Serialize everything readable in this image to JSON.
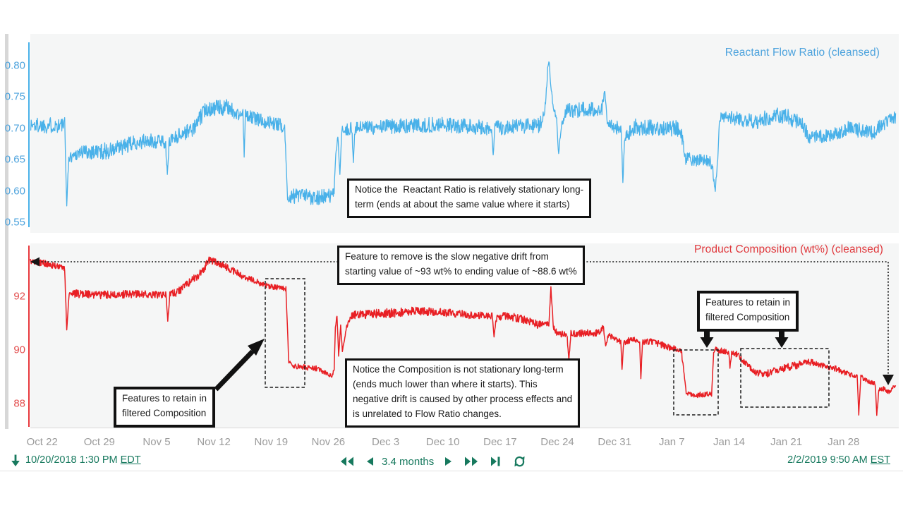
{
  "top_chart": {
    "title": "Reactant Flow Ratio (cleansed)",
    "y_tick_labels": [
      "0.80",
      "0.75",
      "0.70",
      "0.65",
      "0.60",
      "0.55"
    ],
    "series_color": "#49b1e9",
    "axis_color": "#4da3dd"
  },
  "bottom_chart": {
    "title": "Product Composition (wt%) (cleansed)",
    "y_tick_labels": [
      "92",
      "90",
      "88"
    ],
    "series_color": "#e81f24",
    "axis_color": "#e34f4f"
  },
  "x_axis": {
    "labels": [
      "Oct 22",
      "Oct 29",
      "Nov 5",
      "Nov 12",
      "Nov 19",
      "Nov 26",
      "Dec 3",
      "Dec 10",
      "Dec 17",
      "Dec 24",
      "Dec 31",
      "Jan 7",
      "Jan 14",
      "Jan 21",
      "Jan 28"
    ],
    "color": "#9b9b9b"
  },
  "annotations": {
    "reactant_note": "Notice the  Reactant Ratio is relatively stationary long-\nterm (ends at about the same value where it starts)",
    "drift_note": "Feature to remove is the slow negative drift from\nstarting value of ~93 wt% to ending value of ~88.6 wt%",
    "composition_note": "Notice the Composition is not stationary long-term\n(ends much lower than where it starts). This\nnegative drift is caused by other process effects and\nis unrelated to Flow Ratio changes.",
    "retain_note_left": "Features to retain in\nfiltered Composition",
    "retain_note_right": "Features to retain in\nfiltered Composition"
  },
  "toolbar": {
    "start_timestamp": "10/20/2018 1:30 PM",
    "start_tz": "EDT",
    "duration": "3.4 months",
    "end_timestamp": "2/2/2019 9:50 AM",
    "end_tz": "EST",
    "accent_color": "#17795e"
  },
  "chart_data": [
    {
      "type": "line",
      "title": "Reactant Flow Ratio (cleansed)",
      "x_start": "10/20/2018 1:30 PM EDT",
      "x_end": "2/2/2019 9:50 AM EST",
      "x_span_days": 105.8,
      "ylim": [
        0.533,
        0.851
      ],
      "y_ticks": [
        0.8,
        0.75,
        0.7,
        0.65,
        0.6,
        0.55
      ],
      "x_tick_labels": [
        "Oct 22",
        "Oct 29",
        "Nov 5",
        "Nov 12",
        "Nov 19",
        "Nov 26",
        "Dec 3",
        "Dec 10",
        "Dec 17",
        "Dec 24",
        "Dec 31",
        "Jan 7",
        "Jan 14",
        "Jan 21",
        "Jan 28"
      ],
      "x_tick_day_offsets": [
        1.44,
        8.44,
        15.44,
        22.44,
        29.44,
        36.44,
        43.44,
        50.44,
        57.44,
        64.44,
        71.44,
        78.44,
        85.44,
        92.44,
        99.44
      ],
      "grid": false,
      "legend": "none",
      "noise_model": "uniform band around control points, [day, value, half_band]",
      "control_points": [
        [
          0,
          0.705,
          0.013
        ],
        [
          4.2,
          0.705,
          0.013
        ],
        [
          4.45,
          0.578,
          0.002
        ],
        [
          4.7,
          0.652,
          0.008
        ],
        [
          6,
          0.662,
          0.012
        ],
        [
          10,
          0.664,
          0.014
        ],
        [
          13,
          0.678,
          0.012
        ],
        [
          16.5,
          0.68,
          0.012
        ],
        [
          16.75,
          0.625,
          0.003
        ],
        [
          17,
          0.682,
          0.012
        ],
        [
          20,
          0.7,
          0.012
        ],
        [
          21.5,
          0.732,
          0.013
        ],
        [
          24.5,
          0.733,
          0.013
        ],
        [
          25,
          0.722,
          0.01
        ],
        [
          26.0,
          0.722,
          0.01
        ],
        [
          26.15,
          0.655,
          0.003
        ],
        [
          26.3,
          0.72,
          0.011
        ],
        [
          28.5,
          0.712,
          0.011
        ],
        [
          31.1,
          0.703,
          0.011
        ],
        [
          31.45,
          0.588,
          0.004
        ],
        [
          32,
          0.592,
          0.013
        ],
        [
          36.8,
          0.59,
          0.013
        ],
        [
          37.15,
          0.6,
          0.006
        ],
        [
          37.35,
          0.655,
          0.004
        ],
        [
          37.6,
          0.688,
          0.005
        ],
        [
          37.85,
          0.628,
          0.004
        ],
        [
          38.1,
          0.695,
          0.008
        ],
        [
          39.3,
          0.7,
          0.011
        ],
        [
          39.5,
          0.648,
          0.003
        ],
        [
          39.7,
          0.7,
          0.011
        ],
        [
          44,
          0.703,
          0.012
        ],
        [
          50,
          0.706,
          0.012
        ],
        [
          56.4,
          0.7,
          0.012
        ],
        [
          56.6,
          0.655,
          0.003
        ],
        [
          56.8,
          0.7,
          0.012
        ],
        [
          62.3,
          0.705,
          0.012
        ],
        [
          62.9,
          0.725,
          0.008
        ],
        [
          63.25,
          0.792,
          0.006
        ],
        [
          63.45,
          0.808,
          0.004
        ],
        [
          63.7,
          0.756,
          0.006
        ],
        [
          64.05,
          0.733,
          0.008
        ],
        [
          64.35,
          0.718,
          0.006
        ],
        [
          64.6,
          0.658,
          0.004
        ],
        [
          64.95,
          0.705,
          0.008
        ],
        [
          65.6,
          0.728,
          0.012
        ],
        [
          69.9,
          0.732,
          0.012
        ],
        [
          70.25,
          0.758,
          0.005
        ],
        [
          70.55,
          0.712,
          0.008
        ],
        [
          71.3,
          0.702,
          0.012
        ],
        [
          72.25,
          0.7,
          0.01
        ],
        [
          72.45,
          0.617,
          0.004
        ],
        [
          72.7,
          0.688,
          0.01
        ],
        [
          74,
          0.702,
          0.013
        ],
        [
          79.5,
          0.7,
          0.013
        ],
        [
          80.1,
          0.652,
          0.01
        ],
        [
          83.3,
          0.645,
          0.011
        ],
        [
          83.75,
          0.602,
          0.004
        ],
        [
          84.05,
          0.65,
          0.004
        ],
        [
          84.3,
          0.718,
          0.008
        ],
        [
          85.5,
          0.716,
          0.012
        ],
        [
          89,
          0.712,
          0.013
        ],
        [
          91.5,
          0.722,
          0.014
        ],
        [
          94.3,
          0.71,
          0.012
        ],
        [
          95.2,
          0.686,
          0.011
        ],
        [
          97.6,
          0.688,
          0.011
        ],
        [
          100,
          0.7,
          0.012
        ],
        [
          103,
          0.693,
          0.012
        ],
        [
          104.8,
          0.712,
          0.011
        ],
        [
          105.8,
          0.718,
          0.01
        ]
      ]
    },
    {
      "type": "line",
      "title": "Product Composition (wt%) (cleansed)",
      "x_start": "10/20/2018 1:30 PM EDT",
      "x_end": "2/2/2019 9:50 AM EST",
      "x_span_days": 105.8,
      "ylim": [
        87.07,
        93.98
      ],
      "y_ticks": [
        92,
        90,
        88
      ],
      "x_tick_labels": [
        "Oct 22",
        "Oct 29",
        "Nov 5",
        "Nov 12",
        "Nov 19",
        "Nov 26",
        "Dec 3",
        "Dec 10",
        "Dec 17",
        "Dec 24",
        "Dec 31",
        "Jan 7",
        "Jan 14",
        "Jan 21",
        "Jan 28"
      ],
      "x_tick_day_offsets": [
        1.44,
        8.44,
        15.44,
        22.44,
        29.44,
        36.44,
        43.44,
        50.44,
        57.44,
        64.44,
        71.44,
        78.44,
        85.44,
        92.44,
        99.44
      ],
      "grid": false,
      "legend": "none",
      "start_value_wt_pct": 93,
      "end_value_wt_pct": 88.6,
      "noise_model": "uniform band around control points, [day, value, half_band]",
      "control_points": [
        [
          0,
          93.3,
          0.1
        ],
        [
          1.5,
          93.25,
          0.12
        ],
        [
          4.2,
          93.05,
          0.1
        ],
        [
          4.45,
          90.75,
          0.05
        ],
        [
          4.75,
          92.15,
          0.08
        ],
        [
          5.5,
          92.1,
          0.15
        ],
        [
          9,
          92.05,
          0.15
        ],
        [
          13,
          92.1,
          0.15
        ],
        [
          16.6,
          92.05,
          0.13
        ],
        [
          16.8,
          91.05,
          0.05
        ],
        [
          17.05,
          92.1,
          0.13
        ],
        [
          18,
          92.15,
          0.15
        ],
        [
          21,
          92.9,
          0.15
        ],
        [
          21.8,
          93.35,
          0.15
        ],
        [
          22.6,
          93.3,
          0.15
        ],
        [
          24,
          93.1,
          0.14
        ],
        [
          26,
          92.75,
          0.12
        ],
        [
          28,
          92.5,
          0.12
        ],
        [
          29.5,
          92.35,
          0.1
        ],
        [
          31.25,
          92.3,
          0.1
        ],
        [
          31.6,
          89.55,
          0.05
        ],
        [
          32.2,
          89.4,
          0.1
        ],
        [
          35,
          89.3,
          0.1
        ],
        [
          36.3,
          89.1,
          0.08
        ],
        [
          36.9,
          89.0,
          0.06
        ],
        [
          37.15,
          89.3,
          0.05
        ],
        [
          37.3,
          90.85,
          0.06
        ],
        [
          37.5,
          91.3,
          0.05
        ],
        [
          37.7,
          89.75,
          0.05
        ],
        [
          37.95,
          90.9,
          0.06
        ],
        [
          38.15,
          89.95,
          0.05
        ],
        [
          38.7,
          90.9,
          0.1
        ],
        [
          39.3,
          91.3,
          0.15
        ],
        [
          43,
          91.35,
          0.18
        ],
        [
          47,
          91.45,
          0.15
        ],
        [
          50.4,
          91.4,
          0.15
        ],
        [
          54,
          91.3,
          0.15
        ],
        [
          56.5,
          91.25,
          0.13
        ],
        [
          56.7,
          90.45,
          0.05
        ],
        [
          56.95,
          91.15,
          0.13
        ],
        [
          58,
          91.3,
          0.15
        ],
        [
          60,
          91.15,
          0.15
        ],
        [
          62,
          90.95,
          0.15
        ],
        [
          63.4,
          90.95,
          0.1
        ],
        [
          63.65,
          92.3,
          0.06
        ],
        [
          63.95,
          90.85,
          0.1
        ],
        [
          64.4,
          90.6,
          0.13
        ],
        [
          65.6,
          90.6,
          0.13
        ],
        [
          65.85,
          89.65,
          0.05
        ],
        [
          66.1,
          90.6,
          0.13
        ],
        [
          69.7,
          90.65,
          0.13
        ],
        [
          70.05,
          90.9,
          0.08
        ],
        [
          70.35,
          90.15,
          0.08
        ],
        [
          70.7,
          90.55,
          0.1
        ],
        [
          71.8,
          90.35,
          0.12
        ],
        [
          72.2,
          90.3,
          0.08
        ],
        [
          72.35,
          89.3,
          0.05
        ],
        [
          72.55,
          90.25,
          0.08
        ],
        [
          73.5,
          90.4,
          0.13
        ],
        [
          74.5,
          90.35,
          0.1
        ],
        [
          74.65,
          88.95,
          0.05
        ],
        [
          74.85,
          90.3,
          0.1
        ],
        [
          76,
          90.3,
          0.13
        ],
        [
          78.6,
          90.05,
          0.12
        ],
        [
          79.6,
          89.95,
          0.1
        ],
        [
          80.2,
          88.4,
          0.06
        ],
        [
          81,
          88.3,
          0.1
        ],
        [
          83.3,
          88.35,
          0.1
        ],
        [
          83.55,
          89.9,
          0.06
        ],
        [
          83.8,
          90.05,
          0.08
        ],
        [
          84.5,
          89.95,
          0.12
        ],
        [
          85.4,
          89.9,
          0.08
        ],
        [
          85.55,
          89.3,
          0.05
        ],
        [
          85.75,
          89.9,
          0.08
        ],
        [
          86.3,
          89.85,
          0.12
        ],
        [
          87.5,
          89.5,
          0.12
        ],
        [
          88.5,
          89.15,
          0.12
        ],
        [
          90,
          89.1,
          0.14
        ],
        [
          92,
          89.3,
          0.14
        ],
        [
          94,
          89.45,
          0.14
        ],
        [
          95.5,
          89.55,
          0.13
        ],
        [
          96.5,
          89.4,
          0.12
        ],
        [
          98,
          89.35,
          0.12
        ],
        [
          99.5,
          89.15,
          0.11
        ],
        [
          101.1,
          89.0,
          0.08
        ],
        [
          101.3,
          87.6,
          0.05
        ],
        [
          101.55,
          89.0,
          0.08
        ],
        [
          102.3,
          88.85,
          0.1
        ],
        [
          103.3,
          88.75,
          0.08
        ],
        [
          103.5,
          87.55,
          0.05
        ],
        [
          103.75,
          88.5,
          0.08
        ],
        [
          104.3,
          88.55,
          0.1
        ],
        [
          105.1,
          88.4,
          0.08
        ],
        [
          105.5,
          88.6,
          0.06
        ],
        [
          105.8,
          88.65,
          0.05
        ]
      ]
    }
  ]
}
